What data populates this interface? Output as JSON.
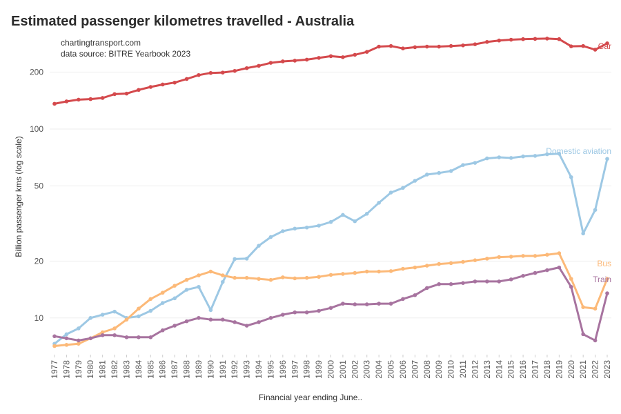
{
  "chart_data": {
    "type": "line",
    "title": "Estimated passenger kilometres travelled - Australia",
    "annotations": [
      "chartingtransport.com",
      "data source: BITRE Yearbook 2023"
    ],
    "xlabel": "Financial year ending June..",
    "ylabel": "Billion passenger kms (log scale)",
    "yscale": "log",
    "ylim": [
      6.5,
      330
    ],
    "yticks": [
      10,
      20,
      50,
      100,
      200
    ],
    "grid": true,
    "legend": "inline labels at right",
    "x": [
      1977,
      1978,
      1979,
      1980,
      1981,
      1982,
      1983,
      1984,
      1985,
      1986,
      1987,
      1988,
      1989,
      1990,
      1991,
      1992,
      1993,
      1994,
      1995,
      1996,
      1997,
      1998,
      1999,
      2000,
      2001,
      2002,
      2003,
      2004,
      2005,
      2006,
      2007,
      2008,
      2009,
      2010,
      2011,
      2012,
      2013,
      2014,
      2015,
      2016,
      2017,
      2018,
      2019,
      2020,
      2021,
      2022,
      2023
    ],
    "series": [
      {
        "name": "Car",
        "color": "#d4494c",
        "values": [
          136,
          140,
          143,
          144,
          146,
          153,
          154,
          161,
          167,
          172,
          176,
          184,
          193,
          198,
          199,
          203,
          210,
          216,
          224,
          228,
          230,
          233,
          238,
          243,
          240,
          247,
          256,
          273,
          275,
          267,
          271,
          273,
          273,
          275,
          277,
          281,
          289,
          294,
          297,
          299,
          300,
          301,
          299,
          274,
          275,
          263,
          284
        ]
      },
      {
        "name": "Domestic aviation",
        "color": "#9dc8e4",
        "values": [
          7.3,
          8.2,
          8.8,
          10.0,
          10.4,
          10.8,
          10.0,
          10.2,
          10.9,
          12.0,
          12.7,
          14.1,
          14.6,
          11.0,
          15.5,
          20.5,
          20.6,
          24.1,
          26.8,
          28.8,
          29.7,
          30.1,
          30.8,
          32.2,
          35.1,
          32.5,
          35.6,
          40.7,
          46.1,
          48.8,
          53.2,
          57.4,
          58.5,
          59.9,
          64.5,
          66.2,
          69.9,
          70.8,
          70.3,
          71.6,
          72.1,
          73.5,
          74.0,
          55.6,
          28.0,
          37.3,
          69.5
        ]
      },
      {
        "name": "Bus",
        "color": "#fcb978",
        "values": [
          7.1,
          7.2,
          7.3,
          7.8,
          8.4,
          8.8,
          9.8,
          11.2,
          12.6,
          13.6,
          14.8,
          15.9,
          16.8,
          17.6,
          16.8,
          16.3,
          16.3,
          16.1,
          15.9,
          16.4,
          16.2,
          16.3,
          16.5,
          16.9,
          17.1,
          17.3,
          17.6,
          17.6,
          17.7,
          18.2,
          18.5,
          18.9,
          19.3,
          19.5,
          19.8,
          20.2,
          20.6,
          21.0,
          21.1,
          21.3,
          21.3,
          21.6,
          22.0,
          16.1,
          11.4,
          11.2,
          16.1
        ]
      },
      {
        "name": "Train",
        "color": "#a7739f",
        "values": [
          8.0,
          7.8,
          7.6,
          7.8,
          8.1,
          8.1,
          7.9,
          7.9,
          7.9,
          8.6,
          9.1,
          9.6,
          10.0,
          9.8,
          9.8,
          9.5,
          9.1,
          9.5,
          10.0,
          10.4,
          10.7,
          10.7,
          10.9,
          11.3,
          11.9,
          11.8,
          11.8,
          11.9,
          11.9,
          12.6,
          13.2,
          14.4,
          15.1,
          15.1,
          15.3,
          15.6,
          15.6,
          15.6,
          16.0,
          16.7,
          17.3,
          17.9,
          18.5,
          14.6,
          8.2,
          7.6,
          13.5
        ]
      }
    ]
  }
}
